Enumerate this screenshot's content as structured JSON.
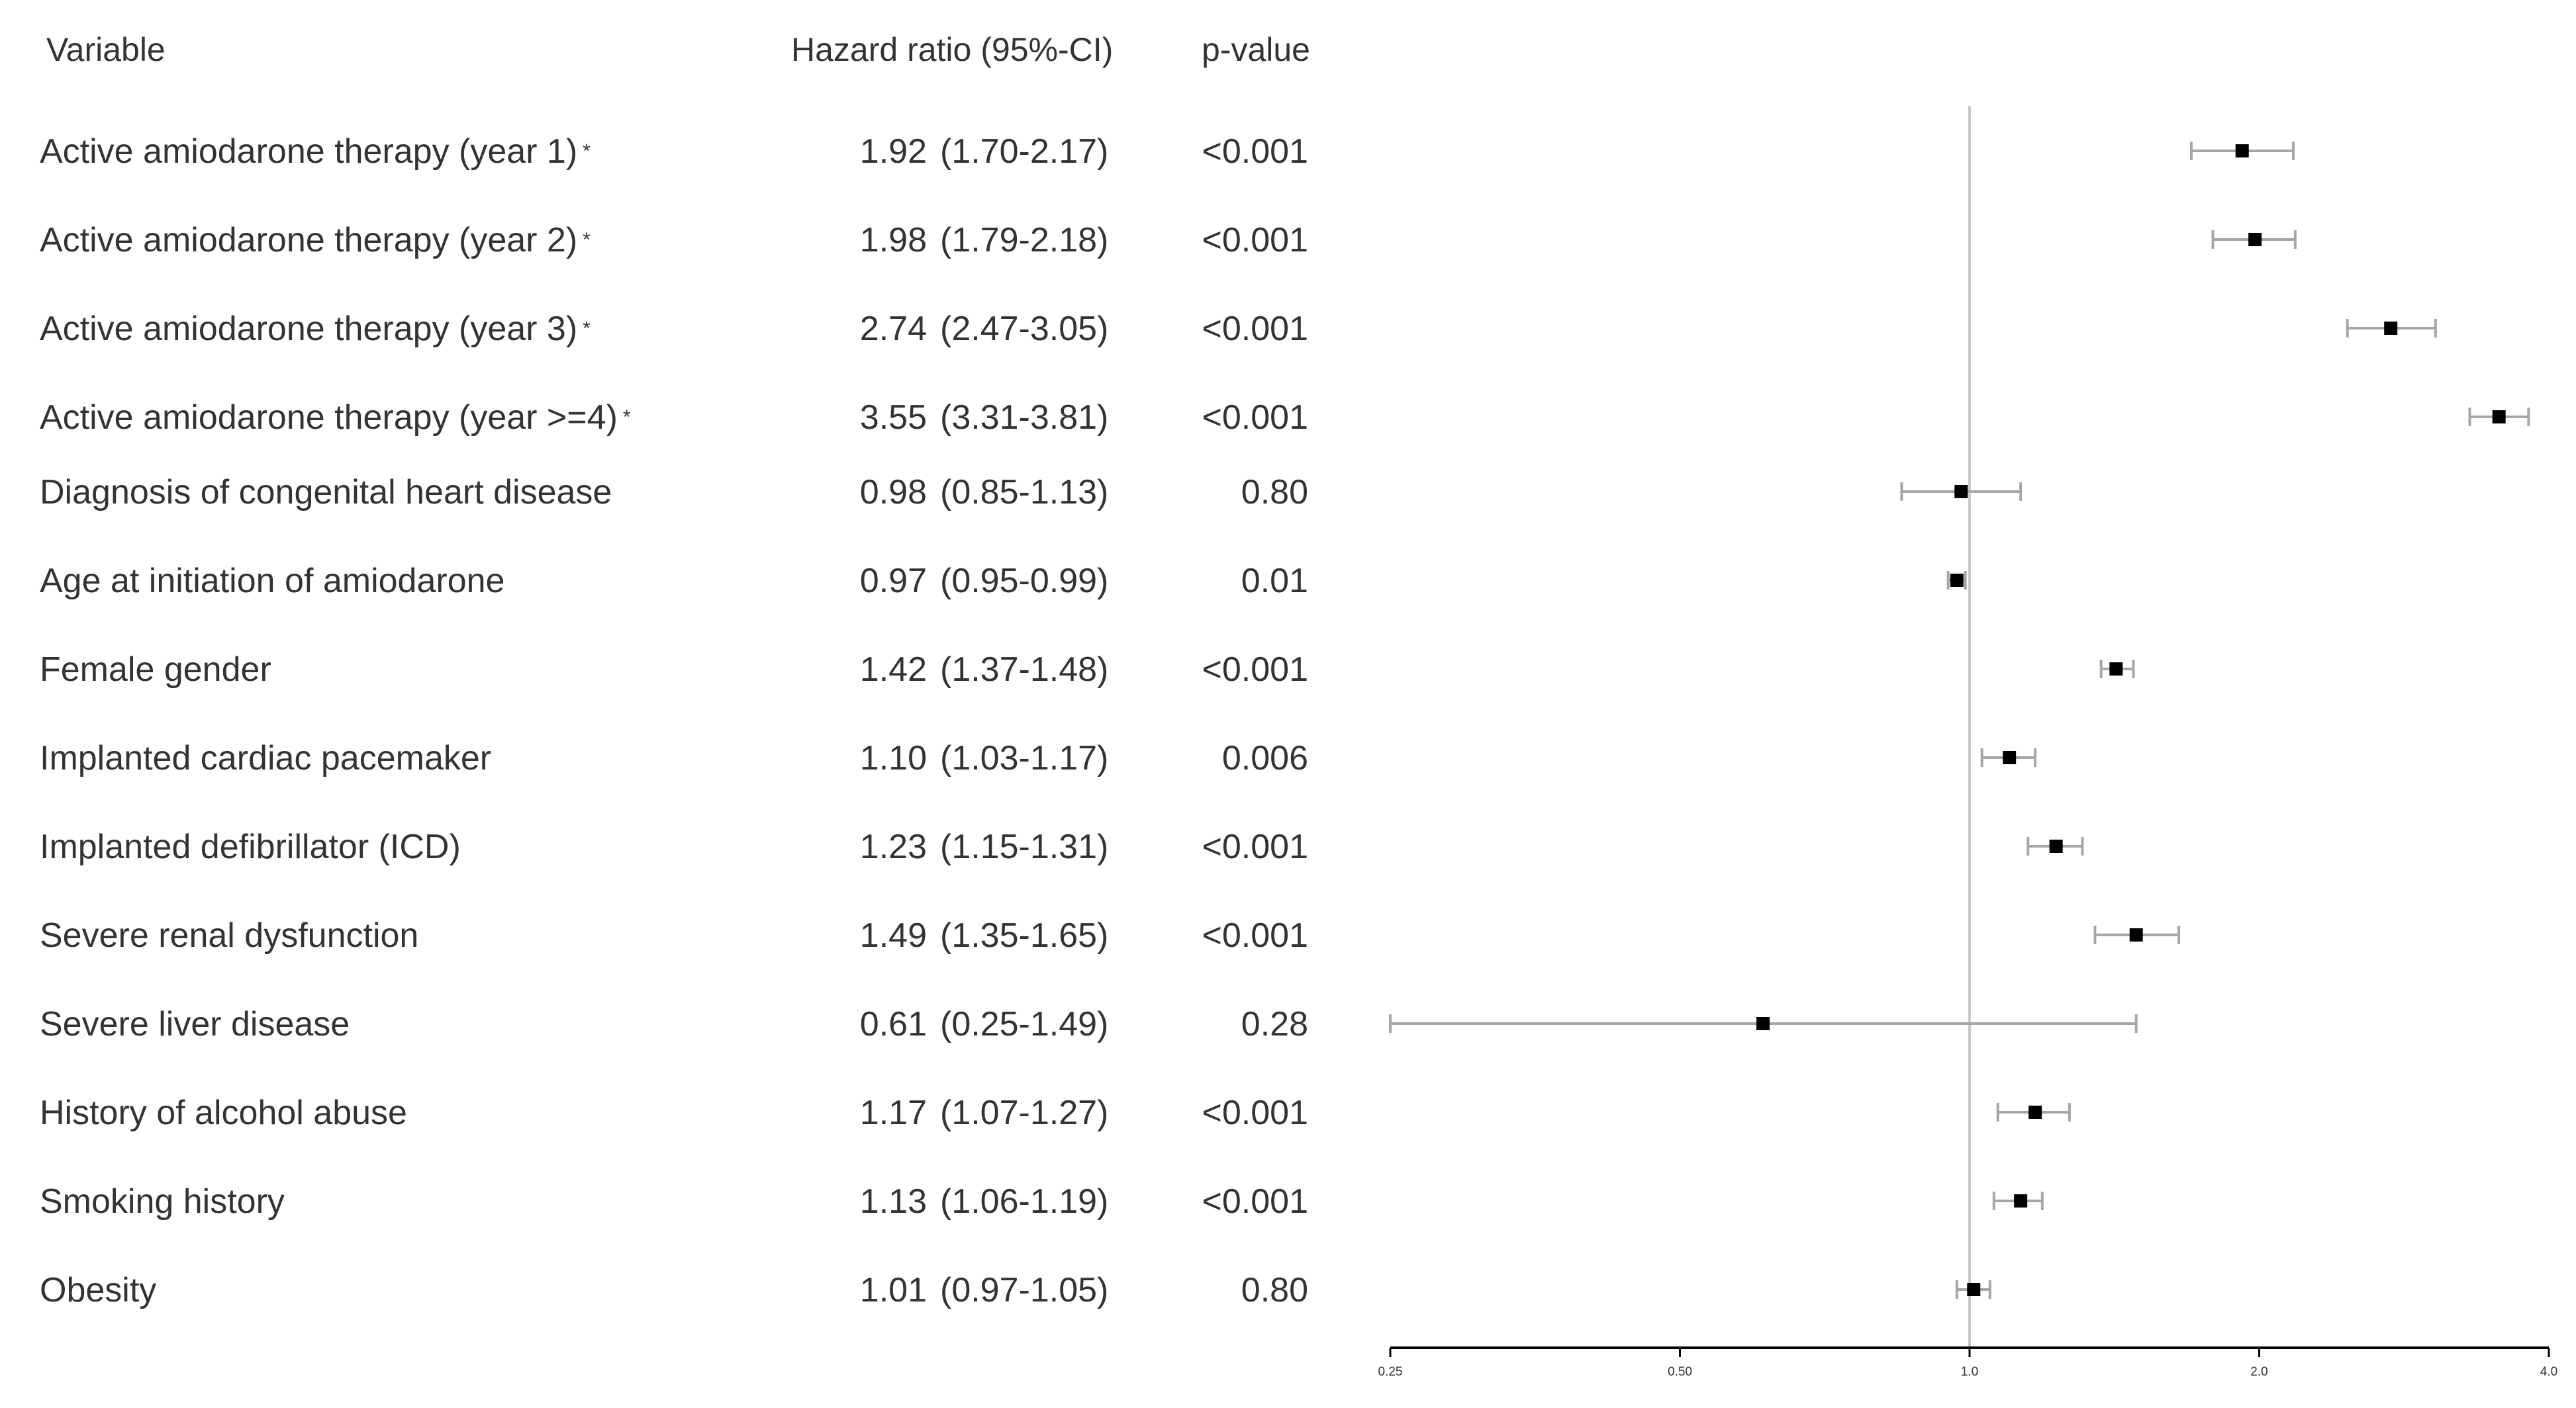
{
  "headers": {
    "variable": "Variable",
    "hazard_ratio": "Hazard ratio (95%-CI)",
    "p_value": "p-value"
  },
  "rows": [
    {
      "label": "Active amiodarone therapy (year 1)",
      "note": "*",
      "hr": "1.92",
      "ci": "(1.70-2.17)",
      "p": "<0.001"
    },
    {
      "label": "Active amiodarone therapy (year 2)",
      "note": "*",
      "hr": "1.98",
      "ci": "(1.79-2.18)",
      "p": "<0.001"
    },
    {
      "label": "Active amiodarone therapy (year 3)",
      "note": "*",
      "hr": "2.74",
      "ci": "(2.47-3.05)",
      "p": "<0.001"
    },
    {
      "label": "Active amiodarone therapy (year >=4)",
      "note": "*",
      "hr": "3.55",
      "ci": "(3.31-3.81)",
      "p": "<0.001"
    },
    {
      "label": "Diagnosis of congenital heart disease",
      "note": "",
      "hr": "0.98",
      "ci": "(0.85-1.13)",
      "p": "0.80"
    },
    {
      "label": "Age at initiation of amiodarone",
      "note": "",
      "hr": "0.97",
      "ci": "(0.95-0.99)",
      "p": "0.01"
    },
    {
      "label": "Female gender",
      "note": "",
      "hr": "1.42",
      "ci": "(1.37-1.48)",
      "p": "<0.001"
    },
    {
      "label": "Implanted cardiac pacemaker",
      "note": "",
      "hr": "1.10",
      "ci": "(1.03-1.17)",
      "p": "0.006"
    },
    {
      "label": "Implanted defibrillator (ICD)",
      "note": "",
      "hr": "1.23",
      "ci": "(1.15-1.31)",
      "p": "<0.001"
    },
    {
      "label": "Severe renal dysfunction",
      "note": "",
      "hr": "1.49",
      "ci": "(1.35-1.65)",
      "p": "<0.001"
    },
    {
      "label": "Severe liver disease",
      "note": "",
      "hr": "0.61",
      "ci": "(0.25-1.49)",
      "p": "0.28"
    },
    {
      "label": "History of alcohol abuse",
      "note": "",
      "hr": "1.17",
      "ci": "(1.07-1.27)",
      "p": "<0.001"
    },
    {
      "label": "Smoking history",
      "note": "",
      "hr": "1.13",
      "ci": "(1.06-1.19)",
      "p": "<0.001"
    },
    {
      "label": "Obesity",
      "note": "",
      "hr": "1.01",
      "ci": "(0.97-1.05)",
      "p": "0.80"
    }
  ],
  "chart_data": {
    "type": "forest",
    "x_scale": "log2",
    "xlim": [
      0.25,
      4.0
    ],
    "x_ticks": [
      0.25,
      0.5,
      1.0,
      2.0,
      4.0
    ],
    "x_tick_labels": [
      "0.25",
      "0.50",
      "1.0",
      "2.0",
      "4.0"
    ],
    "reference_line": 1.0,
    "grid": false,
    "series": [
      {
        "points": [
          {
            "hr": 1.92,
            "lo": 1.7,
            "hi": 2.17
          },
          {
            "hr": 1.98,
            "lo": 1.79,
            "hi": 2.18
          },
          {
            "hr": 2.74,
            "lo": 2.47,
            "hi": 3.05
          },
          {
            "hr": 3.55,
            "lo": 3.31,
            "hi": 3.81
          },
          {
            "hr": 0.98,
            "lo": 0.85,
            "hi": 1.13
          },
          {
            "hr": 0.97,
            "lo": 0.95,
            "hi": 0.99
          },
          {
            "hr": 1.42,
            "lo": 1.37,
            "hi": 1.48
          },
          {
            "hr": 1.1,
            "lo": 1.03,
            "hi": 1.17
          },
          {
            "hr": 1.23,
            "lo": 1.15,
            "hi": 1.31
          },
          {
            "hr": 1.49,
            "lo": 1.35,
            "hi": 1.65
          },
          {
            "hr": 0.61,
            "lo": 0.25,
            "hi": 1.49
          },
          {
            "hr": 1.17,
            "lo": 1.07,
            "hi": 1.27
          },
          {
            "hr": 1.13,
            "lo": 1.06,
            "hi": 1.19
          },
          {
            "hr": 1.01,
            "lo": 0.97,
            "hi": 1.05
          }
        ]
      }
    ],
    "colors": {
      "marker": "#000000",
      "ci_line": "#a6a6a6",
      "reference_line": "#c8c8c8",
      "axis": "#000000",
      "text": "#333333"
    }
  }
}
